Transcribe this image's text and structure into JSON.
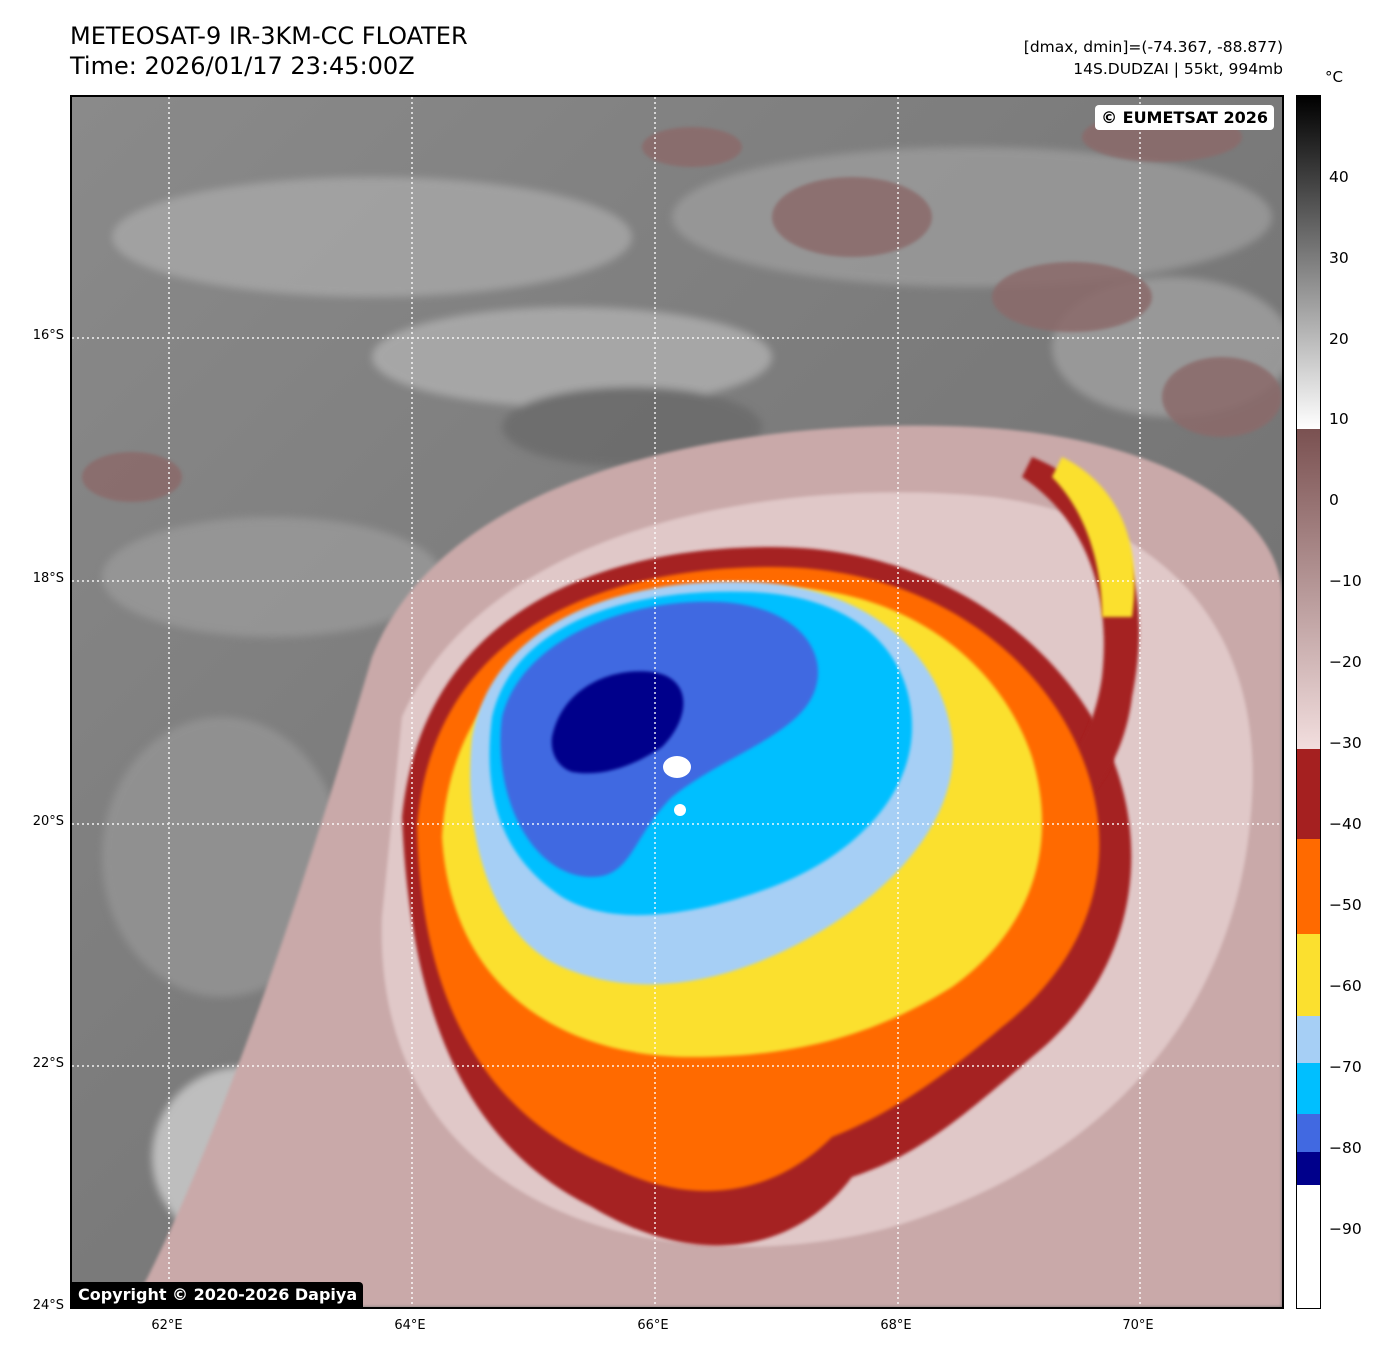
{
  "header": {
    "title_line1": "METEOSAT-9 IR-3KM-CC FLOATER",
    "title_line2": "Time: 2026/01/17 23:45:00Z",
    "dmax_dmin": "[dmax, dmin]=(-74.367, -88.877)",
    "storm_info": "14S.DUDZAI | 55kt, 994mb"
  },
  "map": {
    "lat_ticks": [
      "16°S",
      "18°S",
      "20°S",
      "22°S",
      "24°S"
    ],
    "lon_ticks": [
      "62°E",
      "64°E",
      "66°E",
      "68°E",
      "70°E"
    ],
    "credit_top": "© EUMETSAT 2026",
    "credit_bottom": "Copyright © 2020-2026 Dapiya"
  },
  "colorbar": {
    "unit": "°C",
    "labels": [
      "40",
      "30",
      "20",
      "10",
      "0",
      "−10",
      "−20",
      "−30",
      "−40",
      "−50",
      "−60",
      "−70",
      "−80",
      "−90"
    ],
    "colors": {
      "dark_navy": "#00008b",
      "royal_blue": "#4169e1",
      "deep_sky": "#00bfff",
      "light_blue": "#a6cff5",
      "yellow": "#fbe02f",
      "orange": "#ff6a00",
      "dark_red": "#a52020",
      "pink_brown": "#d7b5b5"
    }
  }
}
